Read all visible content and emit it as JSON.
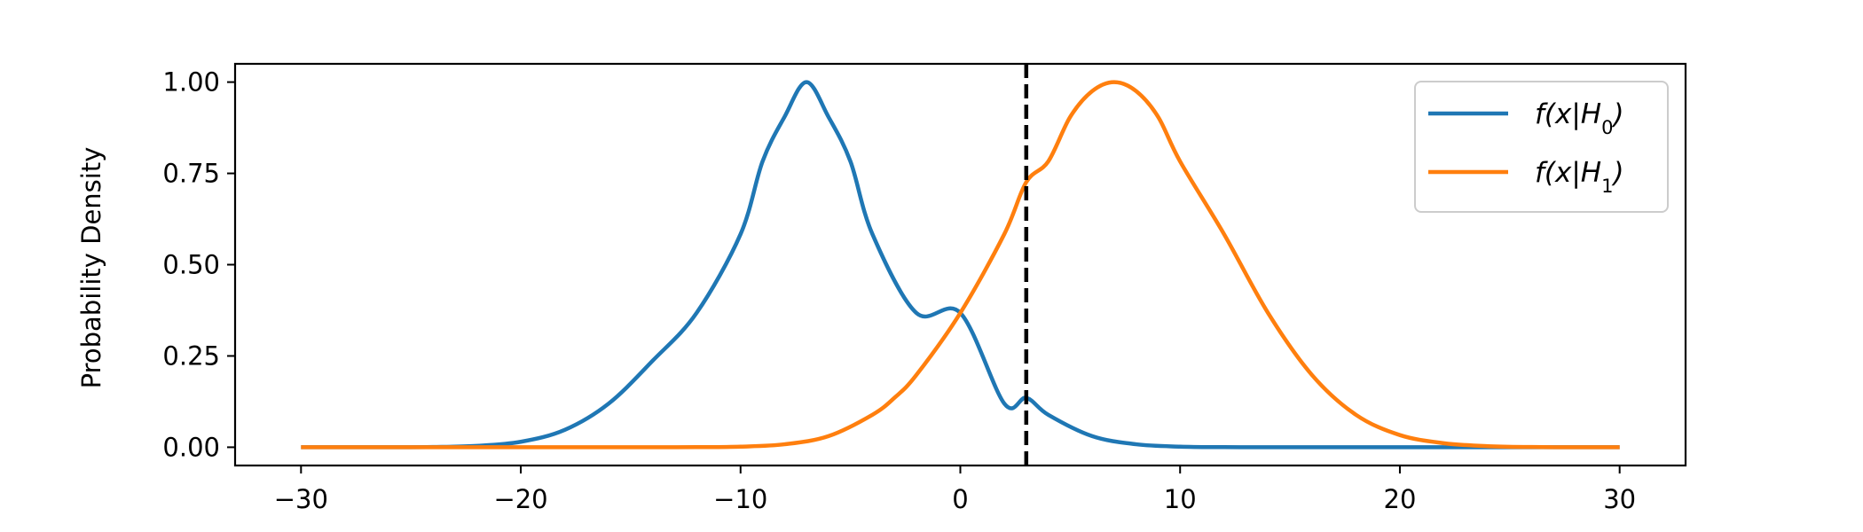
{
  "chart_data": {
    "type": "line",
    "title": "",
    "xlabel": "",
    "ylabel": "Probability Density",
    "xlim": [
      -33,
      33
    ],
    "ylim": [
      -0.05,
      1.05
    ],
    "xticks": [
      -30,
      -20,
      -10,
      0,
      10,
      20,
      30
    ],
    "xtick_labels": [
      "−30",
      "−20",
      "−10",
      "0",
      "10",
      "20",
      "30"
    ],
    "yticks": [
      0.0,
      0.25,
      0.5,
      0.75,
      1.0
    ],
    "ytick_labels": [
      "0.00",
      "0.25",
      "0.50",
      "0.75",
      "1.00"
    ],
    "grid": false,
    "legend_position": "top-right",
    "series": [
      {
        "name": "f(x|H0)",
        "color": "#1f77b4",
        "x": [
          -30,
          -28,
          -26,
          -24,
          -22,
          -20,
          -18,
          -16,
          -14,
          -12,
          -10,
          -9,
          -8,
          -7,
          -6,
          -5,
          -4,
          -2,
          0,
          2,
          3,
          4,
          6,
          8,
          10,
          12,
          14,
          16,
          18,
          20,
          22,
          24,
          26,
          28,
          30
        ],
        "y": [
          0.0,
          0.0,
          0.0001,
          0.0007,
          0.0037,
          0.0149,
          0.0476,
          0.1197,
          0.2369,
          0.3679,
          0.5836,
          0.7827,
          0.9048,
          1.0,
          0.9048,
          0.7827,
          0.5836,
          0.3679,
          0.3679,
          0.1197,
          0.1353,
          0.0889,
          0.0304,
          0.0081,
          0.0017,
          0.0003,
          0.0,
          0.0,
          0.0,
          0.0,
          0.0,
          0.0,
          0.0,
          0.0,
          0.0
        ]
      },
      {
        "name": "f(x|H1)",
        "color": "#ff7f0e",
        "x": [
          -30,
          -28,
          -26,
          -24,
          -22,
          -20,
          -18,
          -16,
          -14,
          -12,
          -10,
          -8,
          -6,
          -4,
          -3,
          -2,
          0,
          2,
          3,
          4,
          5,
          6,
          7,
          8,
          9,
          10,
          12,
          14,
          16,
          18,
          20,
          22,
          24,
          26,
          28,
          30
        ],
        "y": [
          0.0,
          0.0,
          0.0,
          0.0,
          0.0,
          0.0,
          0.0,
          0.0,
          0.0,
          0.0003,
          0.0017,
          0.0081,
          0.0304,
          0.0889,
          0.1353,
          0.1979,
          0.3679,
          0.5836,
          0.7261,
          0.7827,
          0.9048,
          0.9753,
          1.0,
          0.9753,
          0.9048,
          0.7827,
          0.5836,
          0.3679,
          0.1979,
          0.0889,
          0.0333,
          0.0111,
          0.0029,
          0.0006,
          0.0001,
          0.0
        ]
      }
    ],
    "vlines": [
      {
        "x": 3,
        "color": "#000000",
        "style": "dashed"
      }
    ]
  }
}
